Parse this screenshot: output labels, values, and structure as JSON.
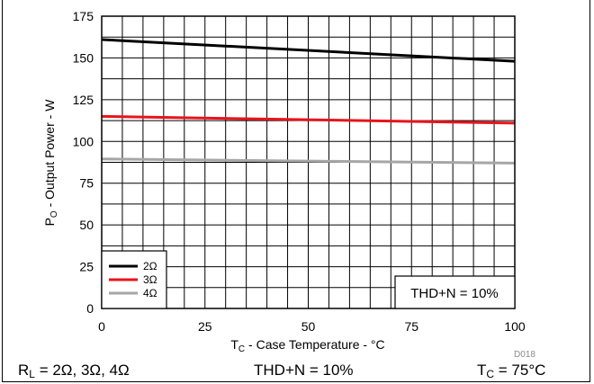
{
  "chart_data": {
    "type": "line",
    "xlabel_main": "T",
    "xlabel_sub": "C",
    "xlabel_rest": " - Case Temperature - °C",
    "ylabel_main": "P",
    "ylabel_sub": "O",
    "ylabel_rest": " - Output Power - W",
    "xlim": [
      0,
      100
    ],
    "ylim": [
      0,
      175
    ],
    "x_ticks": [
      0,
      25,
      50,
      75,
      100
    ],
    "y_ticks": [
      0,
      25,
      50,
      75,
      100,
      125,
      150,
      175
    ],
    "x": [
      0,
      100
    ],
    "series": [
      {
        "name": "2Ω",
        "color": "#000000",
        "values": [
          161,
          148
        ]
      },
      {
        "name": "3Ω",
        "color": "#e8141c",
        "values": [
          115,
          111
        ]
      },
      {
        "name": "4Ω",
        "color": "#a6a6a6",
        "values": [
          89.5,
          87
        ]
      }
    ],
    "legend_position": "bottom-left",
    "annotation": "THD+N = 10%",
    "figure_id": "D018",
    "grid": true
  },
  "conditions": {
    "rl_main": "R",
    "rl_sub": "L",
    "rl_rest": " = 2Ω, 3Ω, 4Ω",
    "thd": "THD+N = 10%",
    "tc_main": "T",
    "tc_sub": "C",
    "tc_rest": " = 75°C"
  }
}
